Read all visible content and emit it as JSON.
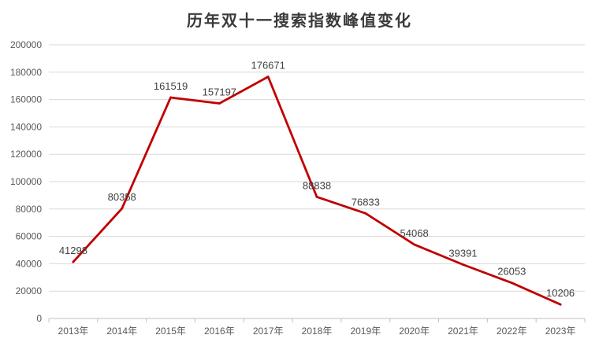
{
  "chart_data": {
    "type": "line",
    "title": "历年双十一搜索指数峰值变化",
    "xlabel": "",
    "ylabel": "",
    "categories": [
      "2013年",
      "2014年",
      "2015年",
      "2016年",
      "2017年",
      "2018年",
      "2019年",
      "2020年",
      "2021年",
      "2022年",
      "2023年"
    ],
    "series": [
      {
        "values": [
          41298,
          80358,
          161519,
          157197,
          176671,
          88838,
          76833,
          54068,
          39391,
          26053,
          10206
        ],
        "color": "#c00000"
      }
    ],
    "ylim": [
      0,
      200000
    ],
    "yticks": [
      0,
      20000,
      40000,
      60000,
      80000,
      100000,
      120000,
      140000,
      160000,
      180000,
      200000
    ],
    "grid": true,
    "legend": "none",
    "data_labels": true
  }
}
